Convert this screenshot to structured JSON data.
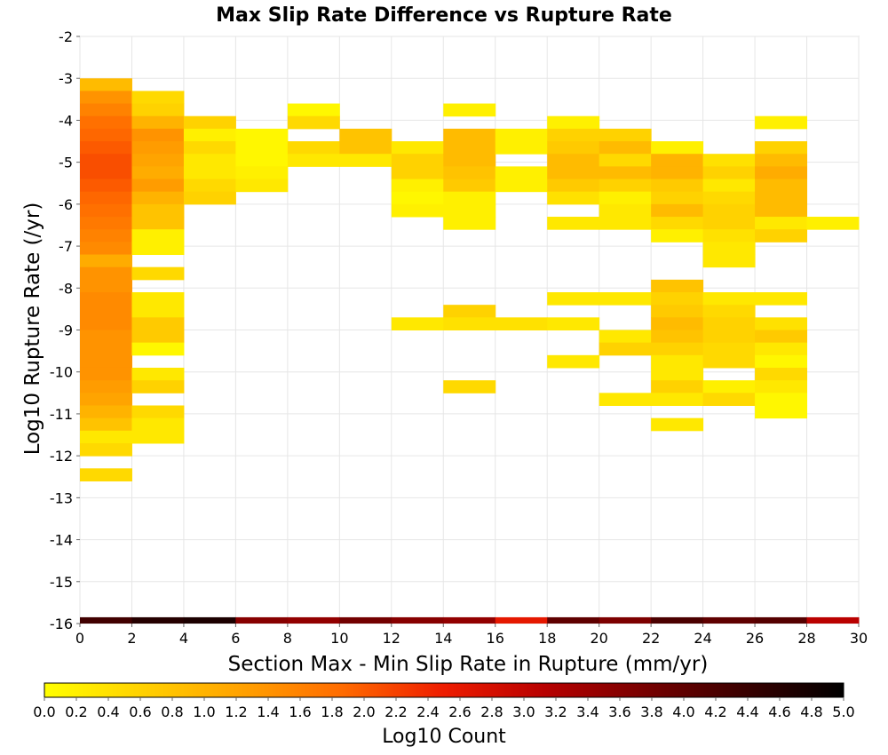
{
  "chart_data": {
    "type": "heatmap",
    "title": "Max Slip Rate Difference vs Rupture Rate",
    "xlabel": "Section Max - Min Slip Rate in Rupture (mm/yr)",
    "ylabel": "Log10 Rupture Rate (/yr)",
    "xlim": [
      0,
      30
    ],
    "ylim": [
      -16,
      -2
    ],
    "x_ticks": [
      0,
      2,
      4,
      6,
      8,
      10,
      12,
      14,
      16,
      18,
      20,
      22,
      24,
      26,
      28,
      30
    ],
    "y_ticks": [
      -16,
      -15,
      -14,
      -13,
      -12,
      -11,
      -10,
      -9,
      -8,
      -7,
      -6,
      -5,
      -4,
      -3,
      -2
    ],
    "grid": true,
    "x_bin_width": 2,
    "y_bin_height": 0.3,
    "value_label": "Log10 Count",
    "colorbar": {
      "label": "Log10 Count",
      "min": 0.0,
      "max": 5.0,
      "ticks": [
        "0.0",
        "0.2",
        "0.4",
        "0.6",
        "0.8",
        "1.0",
        "1.2",
        "1.4",
        "1.6",
        "1.8",
        "2.0",
        "2.2",
        "2.4",
        "2.6",
        "2.8",
        "3.0",
        "3.2",
        "3.4",
        "3.6",
        "3.8",
        "4.0",
        "4.2",
        "4.4",
        "4.6",
        "4.8",
        "5.0"
      ],
      "colors": [
        "#ffff00",
        "#ffd000",
        "#ffa000",
        "#ff6a00",
        "#ee1c00",
        "#b80000",
        "#780000",
        "#3a0000",
        "#000000"
      ]
    },
    "cells": [
      {
        "x0": 0,
        "y0": -3.3,
        "v": 0.9
      },
      {
        "x0": 0,
        "y0": -3.6,
        "v": 1.4
      },
      {
        "x0": 0,
        "y0": -3.9,
        "v": 1.6
      },
      {
        "x0": 0,
        "y0": -4.2,
        "v": 1.8
      },
      {
        "x0": 0,
        "y0": -4.5,
        "v": 1.9
      },
      {
        "x0": 0,
        "y0": -4.8,
        "v": 2.0
      },
      {
        "x0": 0,
        "y0": -5.1,
        "v": 2.1
      },
      {
        "x0": 0,
        "y0": -5.4,
        "v": 2.1
      },
      {
        "x0": 0,
        "y0": -5.7,
        "v": 2.0
      },
      {
        "x0": 0,
        "y0": -6.0,
        "v": 1.9
      },
      {
        "x0": 0,
        "y0": -6.3,
        "v": 1.8
      },
      {
        "x0": 0,
        "y0": -6.6,
        "v": 1.7
      },
      {
        "x0": 0,
        "y0": -6.9,
        "v": 1.6
      },
      {
        "x0": 0,
        "y0": -7.2,
        "v": 1.5
      },
      {
        "x0": 0,
        "y0": -7.5,
        "v": 1.1
      },
      {
        "x0": 0,
        "y0": -7.8,
        "v": 1.4
      },
      {
        "x0": 0,
        "y0": -8.1,
        "v": 1.4
      },
      {
        "x0": 0,
        "y0": -8.4,
        "v": 1.5
      },
      {
        "x0": 0,
        "y0": -8.7,
        "v": 1.5
      },
      {
        "x0": 0,
        "y0": -9.0,
        "v": 1.5
      },
      {
        "x0": 0,
        "y0": -9.3,
        "v": 1.4
      },
      {
        "x0": 0,
        "y0": -9.6,
        "v": 1.4
      },
      {
        "x0": 0,
        "y0": -9.9,
        "v": 1.4
      },
      {
        "x0": 0,
        "y0": -10.2,
        "v": 1.4
      },
      {
        "x0": 0,
        "y0": -10.5,
        "v": 1.3
      },
      {
        "x0": 0,
        "y0": -10.8,
        "v": 1.2
      },
      {
        "x0": 0,
        "y0": -11.1,
        "v": 1.0
      },
      {
        "x0": 0,
        "y0": -11.4,
        "v": 0.8
      },
      {
        "x0": 0,
        "y0": -11.7,
        "v": 0.3
      },
      {
        "x0": 0,
        "y0": -12.0,
        "v": 0.5
      },
      {
        "x0": 0,
        "y0": -12.6,
        "v": 0.5
      },
      {
        "x0": 2,
        "y0": -3.6,
        "v": 0.5
      },
      {
        "x0": 2,
        "y0": -3.9,
        "v": 0.6
      },
      {
        "x0": 2,
        "y0": -4.2,
        "v": 1.0
      },
      {
        "x0": 2,
        "y0": -4.5,
        "v": 1.4
      },
      {
        "x0": 2,
        "y0": -4.8,
        "v": 1.3
      },
      {
        "x0": 2,
        "y0": -5.1,
        "v": 1.2
      },
      {
        "x0": 2,
        "y0": -5.4,
        "v": 1.1
      },
      {
        "x0": 2,
        "y0": -5.7,
        "v": 1.3
      },
      {
        "x0": 2,
        "y0": -6.0,
        "v": 1.0
      },
      {
        "x0": 2,
        "y0": -6.3,
        "v": 0.8
      },
      {
        "x0": 2,
        "y0": -6.6,
        "v": 0.8
      },
      {
        "x0": 2,
        "y0": -6.9,
        "v": 0.2
      },
      {
        "x0": 2,
        "y0": -7.2,
        "v": 0.2
      },
      {
        "x0": 2,
        "y0": -7.8,
        "v": 0.5
      },
      {
        "x0": 2,
        "y0": -8.4,
        "v": 0.3
      },
      {
        "x0": 2,
        "y0": -8.7,
        "v": 0.3
      },
      {
        "x0": 2,
        "y0": -9.0,
        "v": 0.7
      },
      {
        "x0": 2,
        "y0": -9.3,
        "v": 0.7
      },
      {
        "x0": 2,
        "y0": -9.6,
        "v": 0.1
      },
      {
        "x0": 2,
        "y0": -10.2,
        "v": 0.3
      },
      {
        "x0": 2,
        "y0": -10.5,
        "v": 0.6
      },
      {
        "x0": 2,
        "y0": -11.1,
        "v": 0.5
      },
      {
        "x0": 2,
        "y0": -11.4,
        "v": 0.3
      },
      {
        "x0": 2,
        "y0": -11.7,
        "v": 0.3
      },
      {
        "x0": 4,
        "y0": -4.2,
        "v": 0.6
      },
      {
        "x0": 4,
        "y0": -4.5,
        "v": 0.2
      },
      {
        "x0": 4,
        "y0": -4.8,
        "v": 0.5
      },
      {
        "x0": 4,
        "y0": -5.1,
        "v": 0.3
      },
      {
        "x0": 4,
        "y0": -5.4,
        "v": 0.3
      },
      {
        "x0": 4,
        "y0": -5.7,
        "v": 0.5
      },
      {
        "x0": 4,
        "y0": -6.0,
        "v": 0.6
      },
      {
        "x0": 6,
        "y0": -4.5,
        "v": 0.1
      },
      {
        "x0": 6,
        "y0": -4.8,
        "v": 0.1
      },
      {
        "x0": 6,
        "y0": -5.1,
        "v": 0.1
      },
      {
        "x0": 6,
        "y0": -5.4,
        "v": 0.2
      },
      {
        "x0": 6,
        "y0": -5.7,
        "v": 0.3
      },
      {
        "x0": 8,
        "y0": -3.9,
        "v": 0.1
      },
      {
        "x0": 8,
        "y0": -4.2,
        "v": 0.5
      },
      {
        "x0": 8,
        "y0": -4.8,
        "v": 0.5
      },
      {
        "x0": 8,
        "y0": -5.1,
        "v": 0.3
      },
      {
        "x0": 10,
        "y0": -4.5,
        "v": 0.8
      },
      {
        "x0": 10,
        "y0": -4.8,
        "v": 0.8
      },
      {
        "x0": 10,
        "y0": -5.1,
        "v": 0.3
      },
      {
        "x0": 12,
        "y0": -4.8,
        "v": 0.3
      },
      {
        "x0": 12,
        "y0": -5.1,
        "v": 0.6
      },
      {
        "x0": 12,
        "y0": -5.4,
        "v": 0.6
      },
      {
        "x0": 12,
        "y0": -5.7,
        "v": 0.2
      },
      {
        "x0": 12,
        "y0": -6.0,
        "v": 0.1
      },
      {
        "x0": 12,
        "y0": -6.3,
        "v": 0.2
      },
      {
        "x0": 12,
        "y0": -9.0,
        "v": 0.3
      },
      {
        "x0": 14,
        "y0": -3.9,
        "v": 0.2
      },
      {
        "x0": 14,
        "y0": -4.5,
        "v": 0.9
      },
      {
        "x0": 14,
        "y0": -4.8,
        "v": 0.9
      },
      {
        "x0": 14,
        "y0": -5.1,
        "v": 0.9
      },
      {
        "x0": 14,
        "y0": -5.4,
        "v": 0.8
      },
      {
        "x0": 14,
        "y0": -5.7,
        "v": 0.7
      },
      {
        "x0": 14,
        "y0": -6.0,
        "v": 0.2
      },
      {
        "x0": 14,
        "y0": -6.3,
        "v": 0.2
      },
      {
        "x0": 14,
        "y0": -6.6,
        "v": 0.2
      },
      {
        "x0": 14,
        "y0": -8.7,
        "v": 0.6
      },
      {
        "x0": 14,
        "y0": -9.0,
        "v": 0.4
      },
      {
        "x0": 14,
        "y0": -10.5,
        "v": 0.5
      },
      {
        "x0": 16,
        "y0": -4.5,
        "v": 0.2
      },
      {
        "x0": 16,
        "y0": -4.8,
        "v": 0.2
      },
      {
        "x0": 16,
        "y0": -5.4,
        "v": 0.2
      },
      {
        "x0": 16,
        "y0": -5.7,
        "v": 0.2
      },
      {
        "x0": 16,
        "y0": -9.0,
        "v": 0.4
      },
      {
        "x0": 18,
        "y0": -4.2,
        "v": 0.2
      },
      {
        "x0": 18,
        "y0": -4.5,
        "v": 0.6
      },
      {
        "x0": 18,
        "y0": -4.8,
        "v": 0.7
      },
      {
        "x0": 18,
        "y0": -5.1,
        "v": 0.9
      },
      {
        "x0": 18,
        "y0": -5.4,
        "v": 0.9
      },
      {
        "x0": 18,
        "y0": -5.7,
        "v": 0.7
      },
      {
        "x0": 18,
        "y0": -6.0,
        "v": 0.4
      },
      {
        "x0": 18,
        "y0": -6.6,
        "v": 0.3
      },
      {
        "x0": 18,
        "y0": -8.4,
        "v": 0.3
      },
      {
        "x0": 18,
        "y0": -9.0,
        "v": 0.3
      },
      {
        "x0": 18,
        "y0": -9.9,
        "v": 0.3
      },
      {
        "x0": 20,
        "y0": -4.5,
        "v": 0.6
      },
      {
        "x0": 20,
        "y0": -4.8,
        "v": 0.9
      },
      {
        "x0": 20,
        "y0": -5.1,
        "v": 0.5
      },
      {
        "x0": 20,
        "y0": -5.4,
        "v": 0.9
      },
      {
        "x0": 20,
        "y0": -5.7,
        "v": 0.6
      },
      {
        "x0": 20,
        "y0": -6.0,
        "v": 0.2
      },
      {
        "x0": 20,
        "y0": -6.3,
        "v": 0.3
      },
      {
        "x0": 20,
        "y0": -6.6,
        "v": 0.3
      },
      {
        "x0": 20,
        "y0": -8.4,
        "v": 0.3
      },
      {
        "x0": 20,
        "y0": -9.3,
        "v": 0.3
      },
      {
        "x0": 20,
        "y0": -9.6,
        "v": 0.6
      },
      {
        "x0": 20,
        "y0": -10.8,
        "v": 0.3
      },
      {
        "x0": 22,
        "y0": -4.8,
        "v": 0.2
      },
      {
        "x0": 22,
        "y0": -5.1,
        "v": 1.0
      },
      {
        "x0": 22,
        "y0": -5.4,
        "v": 1.0
      },
      {
        "x0": 22,
        "y0": -5.7,
        "v": 0.7
      },
      {
        "x0": 22,
        "y0": -6.0,
        "v": 0.6
      },
      {
        "x0": 22,
        "y0": -6.3,
        "v": 0.9
      },
      {
        "x0": 22,
        "y0": -6.6,
        "v": 0.5
      },
      {
        "x0": 22,
        "y0": -6.9,
        "v": 0.2
      },
      {
        "x0": 22,
        "y0": -8.1,
        "v": 0.8
      },
      {
        "x0": 22,
        "y0": -8.4,
        "v": 0.6
      },
      {
        "x0": 22,
        "y0": -8.7,
        "v": 0.7
      },
      {
        "x0": 22,
        "y0": -9.0,
        "v": 0.9
      },
      {
        "x0": 22,
        "y0": -9.3,
        "v": 0.8
      },
      {
        "x0": 22,
        "y0": -9.6,
        "v": 0.6
      },
      {
        "x0": 22,
        "y0": -9.9,
        "v": 0.3
      },
      {
        "x0": 22,
        "y0": -10.2,
        "v": 0.3
      },
      {
        "x0": 22,
        "y0": -10.5,
        "v": 0.6
      },
      {
        "x0": 22,
        "y0": -10.8,
        "v": 0.3
      },
      {
        "x0": 22,
        "y0": -11.4,
        "v": 0.3
      },
      {
        "x0": 24,
        "y0": -5.1,
        "v": 0.4
      },
      {
        "x0": 24,
        "y0": -5.4,
        "v": 0.6
      },
      {
        "x0": 24,
        "y0": -5.7,
        "v": 0.3
      },
      {
        "x0": 24,
        "y0": -6.0,
        "v": 0.5
      },
      {
        "x0": 24,
        "y0": -6.3,
        "v": 0.6
      },
      {
        "x0": 24,
        "y0": -6.6,
        "v": 0.6
      },
      {
        "x0": 24,
        "y0": -6.9,
        "v": 0.4
      },
      {
        "x0": 24,
        "y0": -7.2,
        "v": 0.3
      },
      {
        "x0": 24,
        "y0": -7.5,
        "v": 0.3
      },
      {
        "x0": 24,
        "y0": -8.4,
        "v": 0.3
      },
      {
        "x0": 24,
        "y0": -8.7,
        "v": 0.5
      },
      {
        "x0": 24,
        "y0": -9.0,
        "v": 0.6
      },
      {
        "x0": 24,
        "y0": -9.3,
        "v": 0.6
      },
      {
        "x0": 24,
        "y0": -9.6,
        "v": 0.5
      },
      {
        "x0": 24,
        "y0": -9.9,
        "v": 0.5
      },
      {
        "x0": 24,
        "y0": -10.5,
        "v": 0.2
      },
      {
        "x0": 24,
        "y0": -10.8,
        "v": 0.5
      },
      {
        "x0": 26,
        "y0": -4.2,
        "v": 0.2
      },
      {
        "x0": 26,
        "y0": -4.8,
        "v": 0.6
      },
      {
        "x0": 26,
        "y0": -5.1,
        "v": 0.9
      },
      {
        "x0": 26,
        "y0": -5.4,
        "v": 1.1
      },
      {
        "x0": 26,
        "y0": -5.7,
        "v": 0.9
      },
      {
        "x0": 26,
        "y0": -6.0,
        "v": 0.9
      },
      {
        "x0": 26,
        "y0": -6.3,
        "v": 0.9
      },
      {
        "x0": 26,
        "y0": -6.6,
        "v": 0.3
      },
      {
        "x0": 26,
        "y0": -6.9,
        "v": 0.6
      },
      {
        "x0": 26,
        "y0": -8.4,
        "v": 0.3
      },
      {
        "x0": 26,
        "y0": -9.0,
        "v": 0.4
      },
      {
        "x0": 26,
        "y0": -9.3,
        "v": 0.7
      },
      {
        "x0": 26,
        "y0": -9.6,
        "v": 0.3
      },
      {
        "x0": 26,
        "y0": -9.9,
        "v": 0.1
      },
      {
        "x0": 26,
        "y0": -10.2,
        "v": 0.5
      },
      {
        "x0": 26,
        "y0": -10.5,
        "v": 0.3
      },
      {
        "x0": 26,
        "y0": -10.8,
        "v": 0.1
      },
      {
        "x0": 26,
        "y0": -11.1,
        "v": 0.1
      },
      {
        "x0": 28,
        "y0": -6.6,
        "v": 0.2
      }
    ],
    "bottom_strip": {
      "y0": -16,
      "y1": -15.85,
      "bins": [
        {
          "x0": 0,
          "v": 4.3
        },
        {
          "x0": 2,
          "v": 4.6
        },
        {
          "x0": 4,
          "v": 4.7
        },
        {
          "x0": 6,
          "v": 3.6
        },
        {
          "x0": 8,
          "v": 3.5
        },
        {
          "x0": 10,
          "v": 3.8
        },
        {
          "x0": 12,
          "v": 3.6
        },
        {
          "x0": 14,
          "v": 3.5
        },
        {
          "x0": 16,
          "v": 2.6
        },
        {
          "x0": 18,
          "v": 4.0
        },
        {
          "x0": 20,
          "v": 3.7
        },
        {
          "x0": 22,
          "v": 4.2
        },
        {
          "x0": 24,
          "v": 4.0
        },
        {
          "x0": 26,
          "v": 4.1
        },
        {
          "x0": 28,
          "v": 3.1
        }
      ]
    }
  }
}
